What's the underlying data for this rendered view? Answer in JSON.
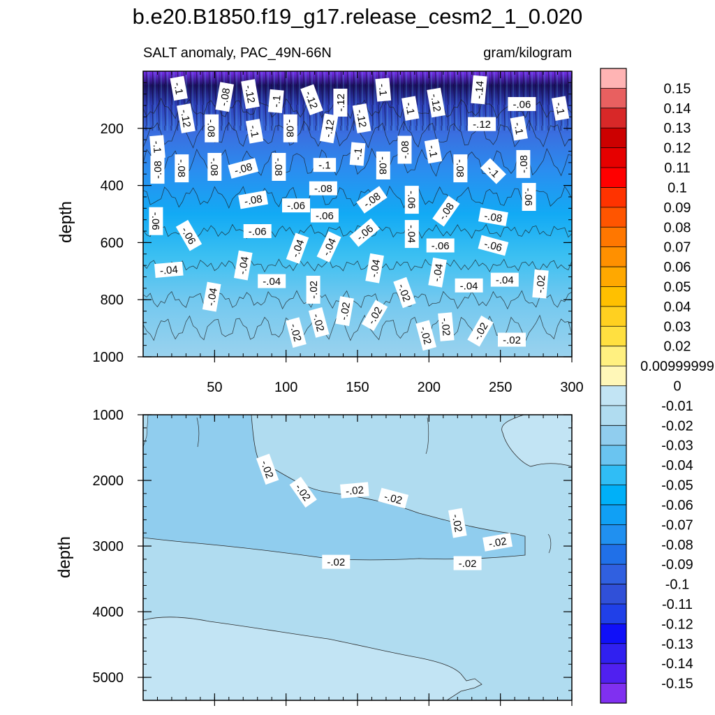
{
  "title": "b.e20.B1850.f19_g17.release_cesm2_1_0.020",
  "subtitle_left": "SALT anomaly, PAC_49N-66N",
  "subtitle_right": "gram/kilogram",
  "chart_data": [
    {
      "type": "heatmap",
      "panel": "upper",
      "ylabel": "depth",
      "xlabel": "",
      "xlim": [
        0,
        300
      ],
      "ylim": [
        1000,
        0
      ],
      "x_ticks": [
        50,
        100,
        150,
        200,
        250,
        300
      ],
      "x_tick_labels": [
        "50",
        "100",
        "150",
        "200",
        "250",
        "300"
      ],
      "y_ticks": [
        200,
        400,
        600,
        800,
        1000
      ],
      "y_tick_labels": [
        "200",
        "400",
        "600",
        "800",
        "1000"
      ],
      "contour_labels": [
        {
          "x": 25,
          "y": 60,
          "text": "-.1",
          "rot": 80
        },
        {
          "x": 57,
          "y": 90,
          "text": "-.08",
          "rot": -80
        },
        {
          "x": 75,
          "y": 80,
          "text": "-.12",
          "rot": 80
        },
        {
          "x": 93,
          "y": 105,
          "text": "-.1",
          "rot": -85
        },
        {
          "x": 118,
          "y": 100,
          "text": "-.12",
          "rot": 70
        },
        {
          "x": 138,
          "y": 110,
          "text": "-.12",
          "rot": -90
        },
        {
          "x": 168,
          "y": 65,
          "text": "-.1",
          "rot": 85
        },
        {
          "x": 205,
          "y": 110,
          "text": "-.12",
          "rot": 80
        },
        {
          "x": 235,
          "y": 65,
          "text": "-.14",
          "rot": -85
        },
        {
          "x": 265,
          "y": 115,
          "text": "-.06",
          "rot": 0
        },
        {
          "x": 292,
          "y": 130,
          "text": "-.1",
          "rot": 80
        },
        {
          "x": 30,
          "y": 165,
          "text": "-.12",
          "rot": 80
        },
        {
          "x": 48,
          "y": 200,
          "text": "-.08",
          "rot": 90
        },
        {
          "x": 78,
          "y": 210,
          "text": "-.1",
          "rot": 80
        },
        {
          "x": 103,
          "y": 200,
          "text": "-.08",
          "rot": 90
        },
        {
          "x": 130,
          "y": 200,
          "text": "-.12",
          "rot": -80
        },
        {
          "x": 153,
          "y": 165,
          "text": "-.12",
          "rot": 80
        },
        {
          "x": 187,
          "y": 130,
          "text": "-.1",
          "rot": 80
        },
        {
          "x": 237,
          "y": 185,
          "text": "-.12",
          "rot": 0
        },
        {
          "x": 263,
          "y": 200,
          "text": "-.1",
          "rot": 80
        },
        {
          "x": 10,
          "y": 265,
          "text": "-.1",
          "rot": 85
        },
        {
          "x": 150,
          "y": 290,
          "text": "-.1",
          "rot": -85
        },
        {
          "x": 183,
          "y": 275,
          "text": "-.08",
          "rot": -90
        },
        {
          "x": 203,
          "y": 280,
          "text": "-.1",
          "rot": 80
        },
        {
          "x": 10,
          "y": 345,
          "text": "-.08",
          "rot": -90
        },
        {
          "x": 27,
          "y": 340,
          "text": "-.08",
          "rot": 90
        },
        {
          "x": 50,
          "y": 335,
          "text": "-.08",
          "rot": 90
        },
        {
          "x": 70,
          "y": 340,
          "text": "-.08",
          "rot": -15
        },
        {
          "x": 95,
          "y": 335,
          "text": "-.08",
          "rot": 90
        },
        {
          "x": 127,
          "y": 328,
          "text": "-.1",
          "rot": 0
        },
        {
          "x": 168,
          "y": 330,
          "text": "-.08",
          "rot": 90
        },
        {
          "x": 222,
          "y": 340,
          "text": "-.08",
          "rot": 90
        },
        {
          "x": 245,
          "y": 350,
          "text": "-.1",
          "rot": 45
        },
        {
          "x": 266,
          "y": 325,
          "text": "-.08",
          "rot": -90
        },
        {
          "x": 126,
          "y": 410,
          "text": "-.08",
          "rot": 0
        },
        {
          "x": 77,
          "y": 450,
          "text": "-.08",
          "rot": -10
        },
        {
          "x": 107,
          "y": 470,
          "text": "-.06",
          "rot": 0
        },
        {
          "x": 127,
          "y": 505,
          "text": "-.06",
          "rot": 0
        },
        {
          "x": 160,
          "y": 450,
          "text": "-.08",
          "rot": -35
        },
        {
          "x": 188,
          "y": 450,
          "text": "-.06",
          "rot": 90
        },
        {
          "x": 212,
          "y": 490,
          "text": "-.08",
          "rot": -55
        },
        {
          "x": 270,
          "y": 440,
          "text": "-.06",
          "rot": 90
        },
        {
          "x": 9,
          "y": 525,
          "text": "-.06",
          "rot": 90
        },
        {
          "x": 32,
          "y": 575,
          "text": "-.06",
          "rot": 60
        },
        {
          "x": 80,
          "y": 560,
          "text": "-.06",
          "rot": 0
        },
        {
          "x": 245,
          "y": 510,
          "text": "-.08",
          "rot": 10
        },
        {
          "x": 108,
          "y": 620,
          "text": "-.04",
          "rot": -70
        },
        {
          "x": 130,
          "y": 615,
          "text": "-.04",
          "rot": -65
        },
        {
          "x": 155,
          "y": 565,
          "text": "-.06",
          "rot": -40
        },
        {
          "x": 188,
          "y": 570,
          "text": "-.04",
          "rot": 90
        },
        {
          "x": 208,
          "y": 610,
          "text": "-.06",
          "rot": 0
        },
        {
          "x": 245,
          "y": 610,
          "text": "-.06",
          "rot": 15
        },
        {
          "x": 18,
          "y": 695,
          "text": "-.04",
          "rot": -5
        },
        {
          "x": 70,
          "y": 680,
          "text": "-.04",
          "rot": -80
        },
        {
          "x": 90,
          "y": 735,
          "text": "-.04",
          "rot": 0
        },
        {
          "x": 162,
          "y": 690,
          "text": "-.04",
          "rot": -80
        },
        {
          "x": 206,
          "y": 705,
          "text": "-.04",
          "rot": -80
        },
        {
          "x": 228,
          "y": 750,
          "text": "-.04",
          "rot": 0
        },
        {
          "x": 253,
          "y": 730,
          "text": "-.04",
          "rot": 0
        },
        {
          "x": 48,
          "y": 790,
          "text": "-.04",
          "rot": -80
        },
        {
          "x": 119,
          "y": 765,
          "text": "-.02",
          "rot": -90
        },
        {
          "x": 183,
          "y": 775,
          "text": "-.02",
          "rot": 70
        },
        {
          "x": 278,
          "y": 745,
          "text": "-.02",
          "rot": -85
        },
        {
          "x": 141,
          "y": 840,
          "text": "-.02",
          "rot": -80
        },
        {
          "x": 162,
          "y": 855,
          "text": "-.02",
          "rot": -60
        },
        {
          "x": 123,
          "y": 880,
          "text": "-.02",
          "rot": 75
        },
        {
          "x": 107,
          "y": 915,
          "text": "-.02",
          "rot": 75
        },
        {
          "x": 198,
          "y": 925,
          "text": "-.02",
          "rot": 75
        },
        {
          "x": 212,
          "y": 895,
          "text": "-.02",
          "rot": 85
        },
        {
          "x": 236,
          "y": 910,
          "text": "-.02",
          "rot": -60
        },
        {
          "x": 258,
          "y": 940,
          "text": "-.02",
          "rot": 0
        }
      ]
    },
    {
      "type": "heatmap",
      "panel": "lower",
      "ylabel": "depth",
      "xlabel": "",
      "xlim": [
        0,
        300
      ],
      "ylim": [
        5350,
        1000
      ],
      "y_ticks": [
        1000,
        2000,
        3000,
        4000,
        5000
      ],
      "y_tick_labels": [
        "1000",
        "2000",
        "3000",
        "4000",
        "5000"
      ],
      "contour_labels": [
        {
          "x": 87,
          "y": 1830,
          "text": "-.02",
          "rot": 70
        },
        {
          "x": 112,
          "y": 2180,
          "text": "-.02",
          "rot": 55
        },
        {
          "x": 148,
          "y": 2150,
          "text": "-.02",
          "rot": -5
        },
        {
          "x": 175,
          "y": 2270,
          "text": "-.02",
          "rot": 15
        },
        {
          "x": 220,
          "y": 2650,
          "text": "-.02",
          "rot": 80
        },
        {
          "x": 248,
          "y": 2940,
          "text": "-.02",
          "rot": -10
        },
        {
          "x": 135,
          "y": 3240,
          "text": "-.02",
          "rot": 0
        },
        {
          "x": 227,
          "y": 3260,
          "text": "-.02",
          "rot": 0
        }
      ]
    }
  ],
  "colorbar": {
    "levels": [
      "0.15",
      "0.14",
      "0.13",
      "0.12",
      "0.11",
      "0.1",
      "0.09",
      "0.08",
      "0.07",
      "0.06",
      "0.05",
      "0.04",
      "0.03",
      "0.02",
      "0.00999999",
      "0",
      "-0.01",
      "-0.02",
      "-0.03",
      "-0.04",
      "-0.05",
      "-0.06",
      "-0.07",
      "-0.08",
      "-0.09",
      "-0.1",
      "-0.11",
      "-0.12",
      "-0.13",
      "-0.14",
      "-0.15"
    ],
    "colors": [
      "#ffb4b4",
      "#e86060",
      "#d82828",
      "#cc0000",
      "#e60000",
      "#ff0000",
      "#ff3300",
      "#ff5500",
      "#ff7700",
      "#ff9000",
      "#ffa800",
      "#ffc000",
      "#ffd020",
      "#ffe040",
      "#fff080",
      "#fff7b8",
      "#c2e4f4",
      "#b0dcf0",
      "#90cdee",
      "#6ac4f0",
      "#30bdf5",
      "#00b0f8",
      "#10a0f5",
      "#2090f0",
      "#2070e8",
      "#3060e0",
      "#3050d8",
      "#2040e8",
      "#1010f8",
      "#3020f0",
      "#5020f0",
      "#8030f0"
    ]
  }
}
